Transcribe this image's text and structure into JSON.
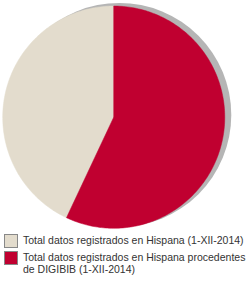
{
  "chart_data": {
    "type": "pie",
    "categories": [
      "Total datos registrados en Hispana (1-XII-2014)",
      "Total datos registrados en Hispana procedentes de DIGIBIB (1-XII-2014)"
    ],
    "values": [
      43,
      57
    ],
    "colors": [
      "#e3dccd",
      "#c00030"
    ],
    "tick_labels": false
  }
}
